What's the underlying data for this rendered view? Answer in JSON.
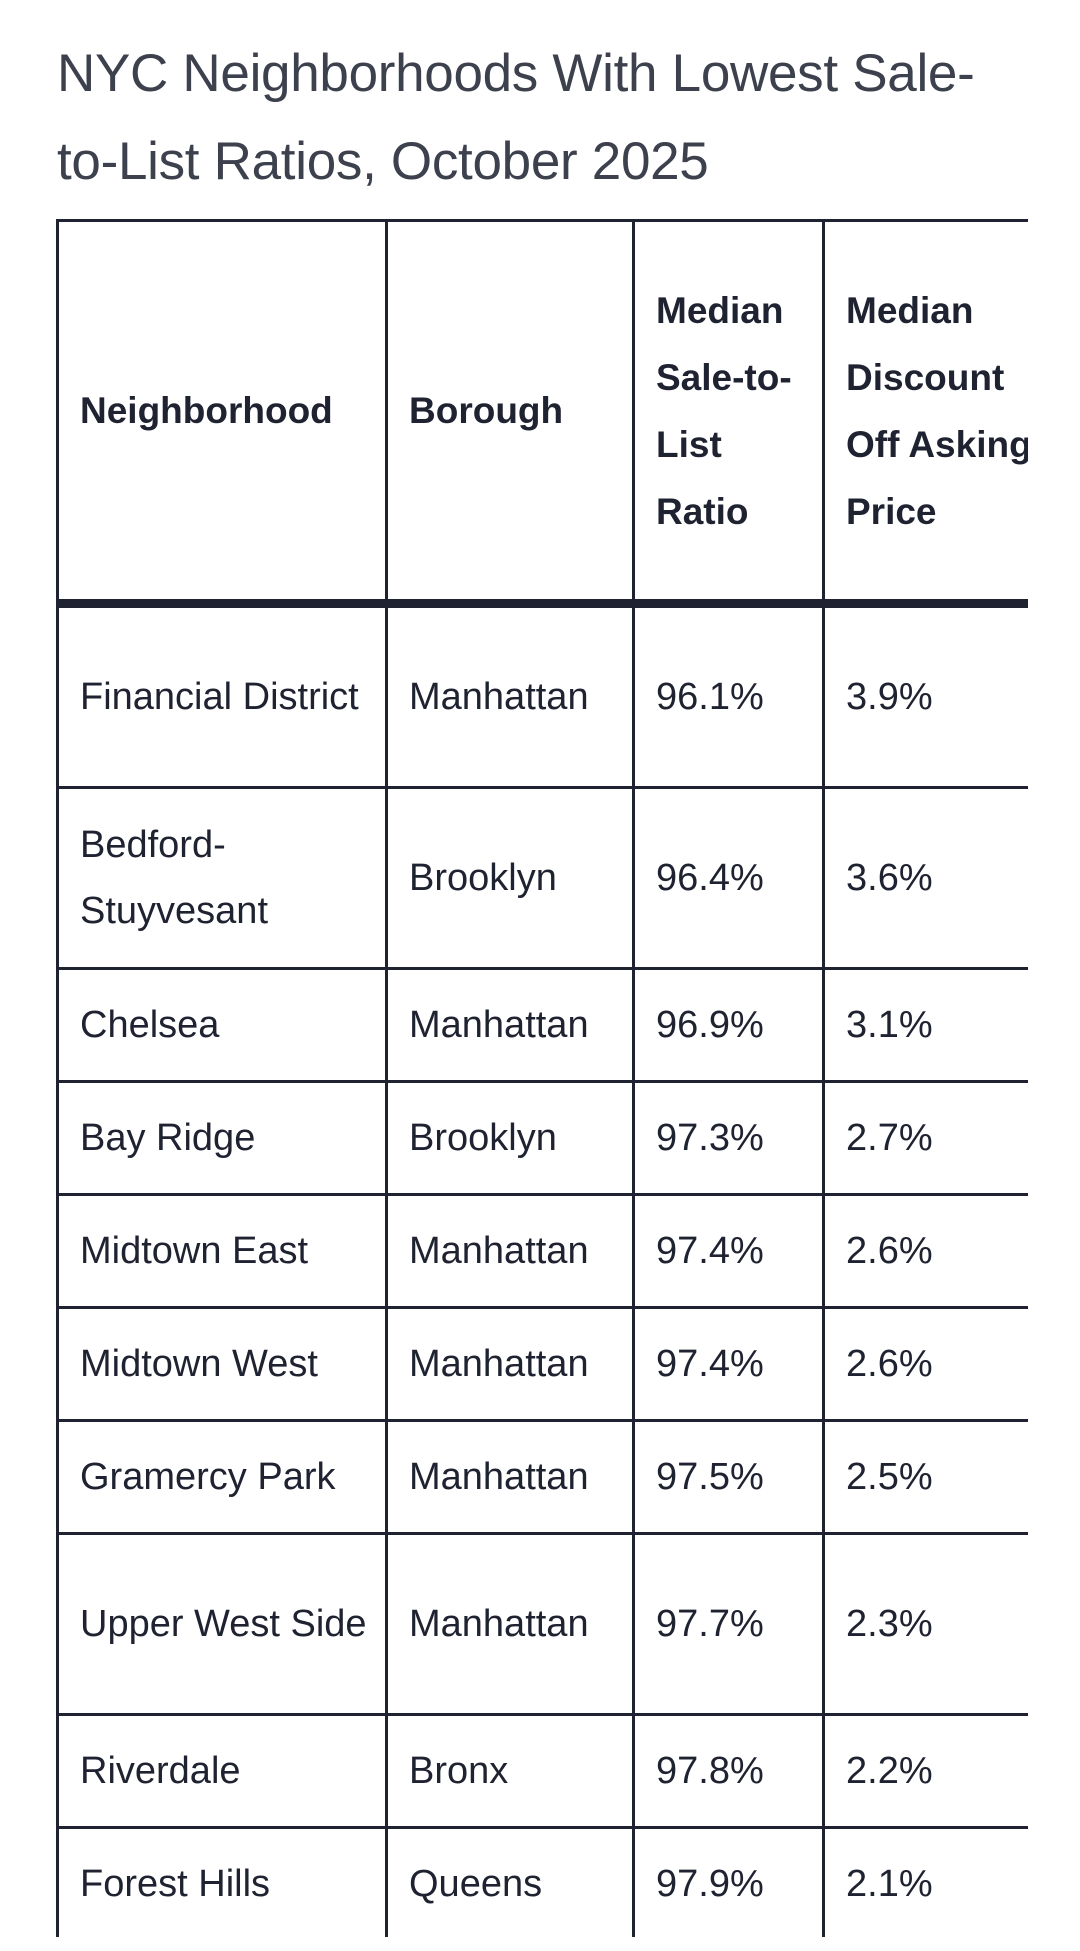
{
  "title": "NYC Neighborhoods With Lowest Sale-to-List Ratios, October 2025",
  "table": {
    "headers": [
      "Neighborhood",
      "Borough",
      "Median Sale-to-List Ratio",
      "Median Discount Off Asking Price"
    ],
    "rows": [
      [
        "Financial District",
        "Manhattan",
        "96.1%",
        "3.9%"
      ],
      [
        "Bedford-Stuyvesant",
        "Brooklyn",
        "96.4%",
        "3.6%"
      ],
      [
        "Chelsea",
        "Manhattan",
        "96.9%",
        "3.1%"
      ],
      [
        "Bay Ridge",
        "Brooklyn",
        "97.3%",
        "2.7%"
      ],
      [
        "Midtown East",
        "Manhattan",
        "97.4%",
        "2.6%"
      ],
      [
        "Midtown West",
        "Manhattan",
        "97.4%",
        "2.6%"
      ],
      [
        "Gramercy Park",
        "Manhattan",
        "97.5%",
        "2.5%"
      ],
      [
        "Upper West Side",
        "Manhattan",
        "97.7%",
        "2.3%"
      ],
      [
        "Riverdale",
        "Bronx",
        "97.8%",
        "2.2%"
      ],
      [
        "Forest Hills",
        "Queens",
        "97.9%",
        "2.1%"
      ]
    ]
  }
}
